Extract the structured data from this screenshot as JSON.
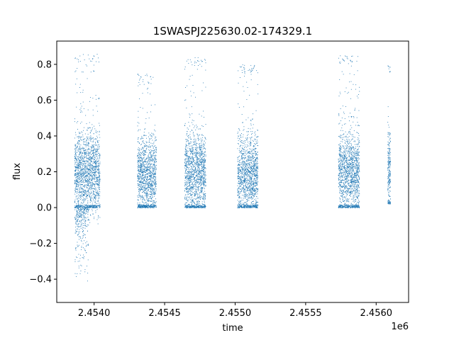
{
  "chart_data": {
    "type": "scatter",
    "title": "1SWASPJ225630.02-174329.1",
    "xlabel": "time",
    "ylabel": "flux",
    "x_offset_label": "1e6",
    "xlim": [
      2453735,
      2456230
    ],
    "ylim": [
      -0.53,
      0.93
    ],
    "x_ticks": [
      2454000,
      2454500,
      2455000,
      2455500,
      2456000
    ],
    "x_tick_labels": [
      "2.4540",
      "2.4545",
      "2.4550",
      "2.4555",
      "2.4560"
    ],
    "y_ticks": [
      -0.4,
      -0.2,
      0.0,
      0.2,
      0.4,
      0.6,
      0.8
    ],
    "y_tick_labels": [
      "−0.4",
      "−0.2",
      "0.0",
      "0.2",
      "0.4",
      "0.6",
      "0.8"
    ],
    "grid": false,
    "marker_color": "#1f77b4",
    "observing_seasons": [
      {
        "x_start": 2453860,
        "x_end": 2454040,
        "flux_median": 0.2,
        "flux_min": -0.46,
        "flux_max": 0.86
      },
      {
        "x_start": 2454305,
        "x_end": 2454440,
        "flux_median": 0.18,
        "flux_min": 0.0,
        "flux_max": 0.75
      },
      {
        "x_start": 2454640,
        "x_end": 2454790,
        "flux_median": 0.2,
        "flux_min": 0.0,
        "flux_max": 0.84
      },
      {
        "x_start": 2455015,
        "x_end": 2455160,
        "flux_median": 0.19,
        "flux_min": 0.0,
        "flux_max": 0.8
      },
      {
        "x_start": 2455730,
        "x_end": 2455880,
        "flux_median": 0.2,
        "flux_min": 0.0,
        "flux_max": 0.85
      },
      {
        "x_start": 2456080,
        "x_end": 2456100,
        "flux_median": 0.22,
        "flux_min": 0.02,
        "flux_max": 0.8
      }
    ]
  }
}
